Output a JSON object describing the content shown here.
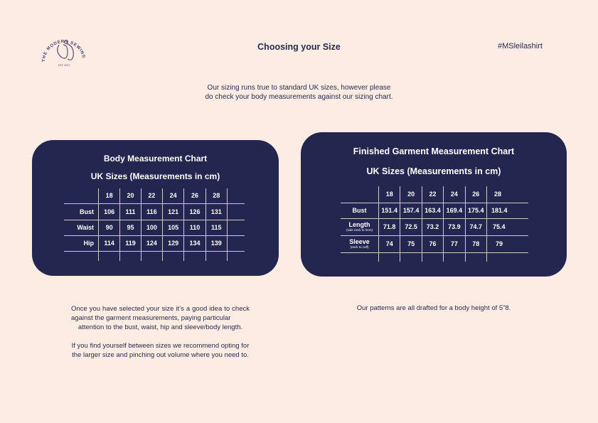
{
  "header": {
    "logo_text": "THE MODERN SEWING CO.",
    "logo_est": "EST. 2021",
    "title": "Choosing your Size",
    "hashtag": "#MSleilashirt"
  },
  "intro": {
    "line1": "Our sizing runs true to standard UK sizes, however please",
    "line2": "do check your body measurements against our sizing chart."
  },
  "colors": {
    "background": "#fdece3",
    "card": "#23264e",
    "text": "#2a2b4e"
  },
  "body_chart": {
    "title": "Body Measurement Chart",
    "subtitle": "UK Sizes (Measurements in cm)",
    "sizes": [
      "18",
      "20",
      "22",
      "24",
      "26",
      "28"
    ],
    "rows": [
      {
        "label": "Bust",
        "values": [
          "106",
          "111",
          "116",
          "121",
          "126",
          "131"
        ]
      },
      {
        "label": "Waist",
        "values": [
          "90",
          "95",
          "100",
          "105",
          "110",
          "115"
        ]
      },
      {
        "label": "Hip",
        "values": [
          "114",
          "119",
          "124",
          "129",
          "134",
          "139"
        ]
      }
    ]
  },
  "garment_chart": {
    "title": "Finished Garment Measurement Chart",
    "subtitle": "UK Sizes (Measurements in cm)",
    "sizes": [
      "18",
      "20",
      "22",
      "24",
      "26",
      "28"
    ],
    "rows": [
      {
        "label": "Bust",
        "note": "",
        "values": [
          "151.4",
          "157.4",
          "163.4",
          "169.4",
          "175.4",
          "181.4"
        ]
      },
      {
        "label": "Length",
        "note": "(side neck to hem)",
        "values": [
          "71.8",
          "72.5",
          "73.2",
          "73.9",
          "74.7",
          "75.4"
        ]
      },
      {
        "label": "Sleeve",
        "note": "(neck to cuff)",
        "values": [
          "74",
          "75",
          "76",
          "77",
          "78",
          "79"
        ]
      }
    ]
  },
  "footer": {
    "left_p1_a": "Once you have selected your size it’s a good idea to check against the garment measurements, paying particular",
    "left_p1_b": "attention to the bust, waist, hip and sleeve/body length.",
    "left_p2": "If you find yourself between sizes we recommend opting for the larger size and pinching out volume where you need to.",
    "right": "Our patterns are all drafted for a body height of 5”8."
  }
}
